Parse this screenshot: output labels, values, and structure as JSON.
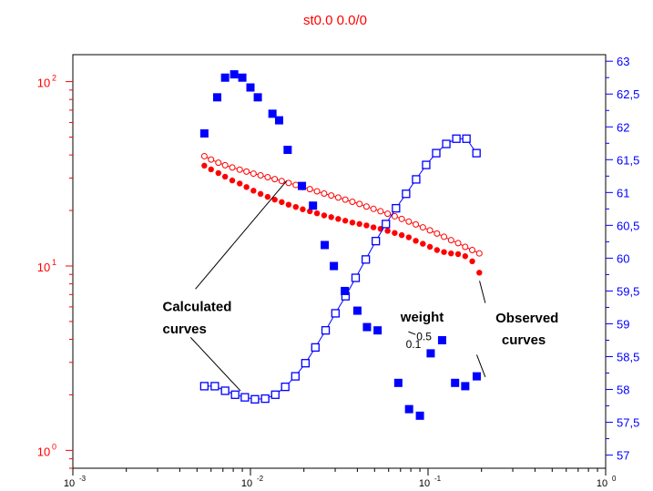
{
  "chart_data": {
    "type": "scatter",
    "title": "st0.0 0.0/0",
    "x_axis": {
      "scale": "log",
      "range": [
        0.001,
        1
      ],
      "ticks": [
        {
          "value": 0.001,
          "base": "10",
          "exp": "-3"
        },
        {
          "value": 0.01,
          "base": "10",
          "exp": "-2"
        },
        {
          "value": 0.1,
          "base": "10",
          "exp": "-1"
        },
        {
          "value": 1,
          "base": "10",
          "exp": "0"
        }
      ]
    },
    "y_left_axis": {
      "scale": "log",
      "range": [
        0.8,
        140
      ],
      "color": "#ff0000",
      "ticks": [
        {
          "value": 1,
          "base": "10",
          "exp": "0"
        },
        {
          "value": 10,
          "base": "10",
          "exp": "1"
        },
        {
          "value": 100,
          "base": "10",
          "exp": "2"
        }
      ]
    },
    "y_right_axis": {
      "scale": "linear",
      "range": [
        56.8,
        63.1
      ],
      "color": "#0000ff",
      "ticks": [
        "63",
        "62,5",
        "62",
        "61,5",
        "61",
        "60,5",
        "60",
        "59,5",
        "59",
        "58,5",
        "58",
        "57,5",
        "57"
      ],
      "tick_values": [
        63,
        62.5,
        62,
        61.5,
        61,
        60.5,
        60,
        59.5,
        59,
        58.5,
        58,
        57.5,
        57
      ]
    },
    "series": [
      {
        "axis": "left",
        "marker": "open-circle",
        "color": "#ff0000",
        "line": true,
        "x": [
          0.0055,
          0.006,
          0.0066,
          0.0072,
          0.0079,
          0.0087,
          0.0095,
          0.0104,
          0.0114,
          0.0125,
          0.0137,
          0.015,
          0.0164,
          0.018,
          0.0197,
          0.0216,
          0.0237,
          0.026,
          0.0285,
          0.0312,
          0.0342,
          0.0375,
          0.0411,
          0.045,
          0.0493,
          0.054,
          0.0592,
          0.0649,
          0.0711,
          0.0779,
          0.0853,
          0.0935,
          0.1025,
          0.1123,
          0.123,
          0.1348,
          0.1477,
          0.1619,
          0.1774,
          0.1944
        ],
        "y": [
          39.4,
          37.8,
          36.3,
          35.2,
          34.2,
          33.3,
          32.5,
          31.7,
          31,
          30.3,
          29.6,
          28.9,
          28.2,
          27.5,
          26.8,
          26.1,
          25.4,
          24.7,
          24.1,
          23.5,
          22.9,
          22.3,
          21.7,
          21,
          20.4,
          19.8,
          19.2,
          18.6,
          18,
          17.4,
          16.8,
          16.2,
          15.6,
          15,
          14.4,
          13.8,
          13.3,
          12.7,
          12.2,
          11.7
        ]
      },
      {
        "axis": "left",
        "marker": "filled-circle",
        "color": "#ff0000",
        "line": false,
        "x": [
          0.0055,
          0.006,
          0.0066,
          0.0072,
          0.0079,
          0.0087,
          0.0095,
          0.0104,
          0.0114,
          0.0125,
          0.0137,
          0.015,
          0.0164,
          0.018,
          0.0197,
          0.0216,
          0.0237,
          0.026,
          0.0285,
          0.0312,
          0.0342,
          0.0375,
          0.0411,
          0.045,
          0.0493,
          0.054,
          0.0592,
          0.0649,
          0.0711,
          0.0779,
          0.0853,
          0.0935,
          0.1025,
          0.1123,
          0.123,
          0.1348,
          0.1477,
          0.1619,
          0.1774,
          0.1944
        ],
        "y": [
          35,
          33.4,
          31.9,
          30.5,
          29.1,
          28,
          26.8,
          25.6,
          24.6,
          23.7,
          22.9,
          22.2,
          21.5,
          20.9,
          20.3,
          19.8,
          19.3,
          18.8,
          18.4,
          18,
          17.6,
          17.2,
          16.9,
          16.6,
          16.2,
          15.9,
          15.5,
          15.1,
          14.7,
          14.3,
          13.7,
          13.2,
          12.7,
          12.2,
          11.9,
          11.7,
          11.6,
          11.3,
          10.6,
          9.2
        ]
      },
      {
        "axis": "right",
        "marker": "open-square",
        "color": "#0000ff",
        "line": true,
        "x": [
          0.0055,
          0.0063,
          0.0072,
          0.0082,
          0.0093,
          0.0106,
          0.0121,
          0.0138,
          0.0157,
          0.0179,
          0.0204,
          0.0232,
          0.0265,
          0.0301,
          0.0343,
          0.0391,
          0.0446,
          0.0508,
          0.0579,
          0.066,
          0.0752,
          0.0857,
          0.0976,
          0.1112,
          0.1267,
          0.1444,
          0.1645,
          0.1874
        ],
        "y": [
          58.05,
          58.05,
          57.98,
          57.92,
          57.88,
          57.85,
          57.86,
          57.92,
          58.04,
          58.2,
          58.4,
          58.64,
          58.9,
          59.16,
          59.42,
          59.7,
          59.98,
          60.26,
          60.52,
          60.76,
          60.98,
          61.2,
          61.42,
          61.6,
          61.74,
          61.82,
          61.82,
          61.6
        ]
      },
      {
        "axis": "right",
        "marker": "filled-square",
        "color": "#0000ff",
        "line": false,
        "x": [
          0.0055,
          0.0065,
          0.0072,
          0.0081,
          0.009,
          0.01,
          0.011,
          0.0133,
          0.0145,
          0.0162,
          0.0195,
          0.0225,
          0.0262,
          0.0295,
          0.034,
          0.04,
          0.0453,
          0.052,
          0.068,
          0.0782,
          0.09,
          0.1035,
          0.12,
          0.142,
          0.162,
          0.188
        ],
        "y": [
          61.9,
          62.45,
          62.75,
          62.8,
          62.75,
          62.6,
          62.45,
          62.2,
          62.1,
          61.65,
          61.1,
          60.8,
          60.2,
          59.88,
          59.5,
          59.2,
          58.95,
          58.9,
          58.1,
          57.7,
          57.6,
          58.55,
          58.75,
          58.1,
          58.05,
          58.2
        ]
      }
    ],
    "annotations": [
      {
        "text": "Calculated",
        "x": 0.0032,
        "y": 5.7
      },
      {
        "text": "curves",
        "x": 0.0032,
        "y": 4.3
      },
      {
        "text": "weight",
        "x": 0.07,
        "y": 5.0
      },
      {
        "text": "0.5",
        "x": 0.086,
        "y": 3.95
      },
      {
        "text": "0.1",
        "x": 0.075,
        "y": 3.6
      },
      {
        "text": "Observed",
        "x": 0.24,
        "y": 4.95
      },
      {
        "text": "curves",
        "x": 0.26,
        "y": 3.75
      }
    ],
    "leader_lines": [
      {
        "from": [
          0.0049,
          7.5
        ],
        "to": [
          0.016,
          29
        ]
      },
      {
        "from": [
          0.0046,
          4.1
        ],
        "to": [
          0.0088,
          2.1
        ]
      },
      {
        "from": [
          0.21,
          6.3
        ],
        "to": [
          0.195,
          8.3
        ]
      },
      {
        "from": [
          0.21,
          2.5
        ],
        "to": [
          0.188,
          3.3
        ]
      },
      {
        "from": [
          0.0775,
          4.4
        ],
        "to": [
          0.085,
          4.25
        ]
      }
    ]
  }
}
